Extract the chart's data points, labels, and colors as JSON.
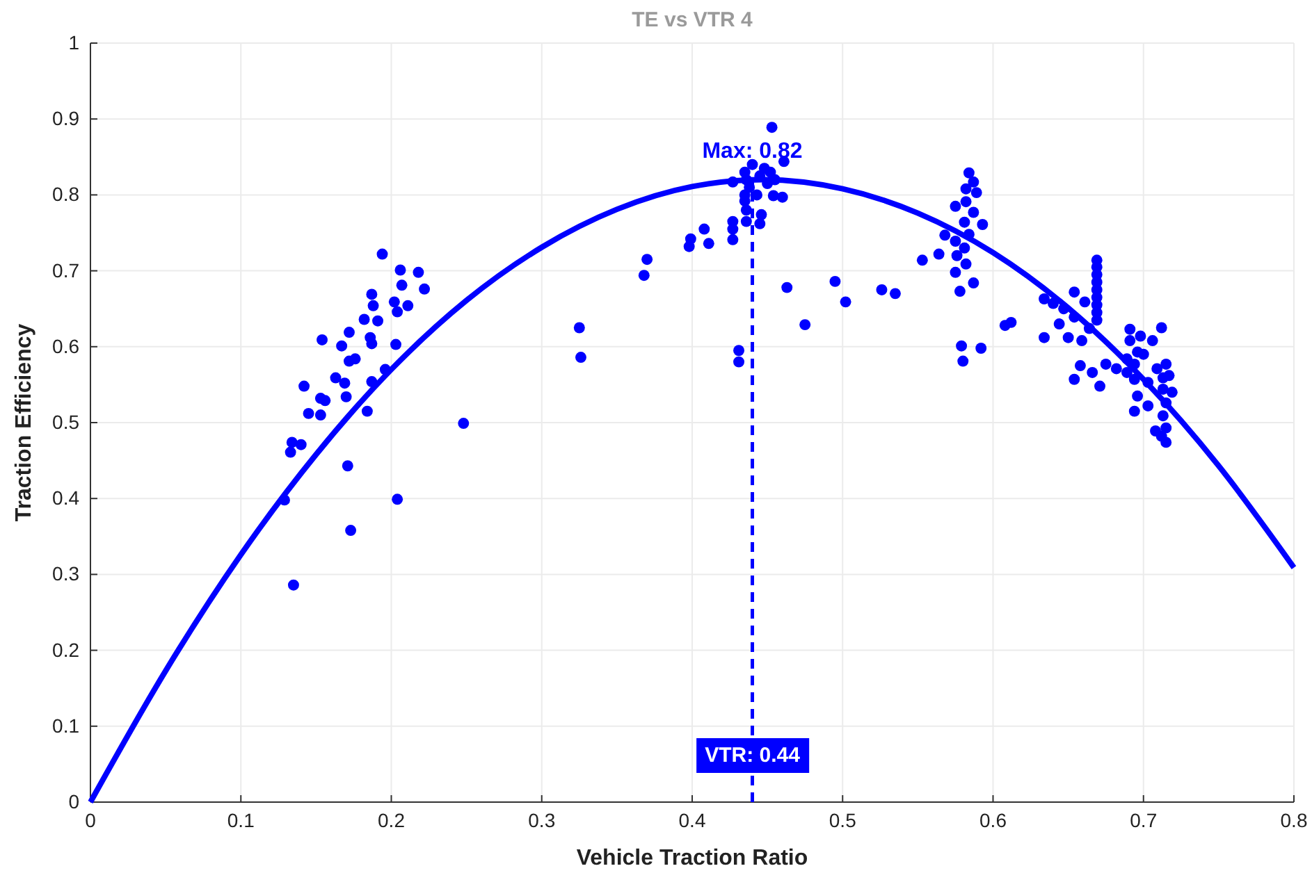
{
  "chart_data": {
    "type": "scatter",
    "title": "TE vs VTR 4",
    "xlabel": "Vehicle Traction Ratio",
    "ylabel": "Traction Efficiency",
    "xlim": [
      0,
      0.8
    ],
    "xticks": [
      0,
      0.1,
      0.2,
      0.3,
      0.4,
      0.5,
      0.6,
      0.7,
      0.8
    ],
    "ylim": [
      0,
      1
    ],
    "yticks": [
      0,
      0.1,
      0.2,
      0.3,
      0.4,
      0.5,
      0.6,
      0.7,
      0.8,
      0.9,
      1
    ],
    "grid": true,
    "annotations": [
      {
        "text": "Max: 0.82",
        "x": 0.44,
        "y": 0.82
      }
    ],
    "ref_lines": [
      {
        "axis": "x",
        "value": 0.44,
        "label": "VTR: 0.44",
        "color": "#0000ff",
        "line_style": "dashed"
      }
    ],
    "series": [
      {
        "marker": "circle",
        "color": "#0000ff",
        "x": [
          0.194,
          0.206,
          0.218,
          0.207,
          0.222,
          0.187,
          0.202,
          0.188,
          0.211,
          0.204,
          0.182,
          0.191,
          0.172,
          0.186,
          0.187,
          0.154,
          0.167,
          0.203,
          0.176,
          0.172,
          0.196,
          0.163,
          0.169,
          0.187,
          0.142,
          0.17,
          0.153,
          0.156,
          0.145,
          0.153,
          0.184,
          0.134,
          0.14,
          0.133,
          0.171,
          0.248,
          0.129,
          0.204,
          0.173,
          0.135,
          0.453,
          0.461,
          0.427,
          0.435,
          0.44,
          0.445,
          0.45,
          0.438,
          0.448,
          0.443,
          0.452,
          0.455,
          0.436,
          0.46,
          0.454,
          0.435,
          0.435,
          0.436,
          0.446,
          0.427,
          0.436,
          0.445,
          0.427,
          0.427,
          0.408,
          0.399,
          0.398,
          0.411,
          0.37,
          0.368,
          0.325,
          0.326,
          0.431,
          0.431,
          0.463,
          0.475,
          0.495,
          0.502,
          0.526,
          0.535,
          0.553,
          0.564,
          0.568,
          0.584,
          0.587,
          0.582,
          0.589,
          0.575,
          0.582,
          0.587,
          0.593,
          0.581,
          0.584,
          0.575,
          0.581,
          0.576,
          0.582,
          0.575,
          0.578,
          0.587,
          0.579,
          0.58,
          0.592,
          0.608,
          0.612,
          0.634,
          0.634,
          0.64,
          0.647,
          0.644,
          0.654,
          0.65,
          0.658,
          0.654,
          0.666,
          0.671,
          0.659,
          0.654,
          0.669,
          0.669,
          0.669,
          0.669,
          0.669,
          0.669,
          0.669,
          0.669,
          0.669,
          0.661,
          0.664,
          0.675,
          0.682,
          0.689,
          0.694,
          0.696,
          0.691,
          0.691,
          0.698,
          0.7,
          0.694,
          0.696,
          0.694,
          0.703,
          0.706,
          0.709,
          0.703,
          0.715,
          0.712,
          0.708,
          0.712,
          0.715,
          0.713,
          0.715,
          0.713,
          0.717,
          0.713,
          0.719,
          0.715,
          0.689
        ],
        "values": [
          0.722,
          0.701,
          0.698,
          0.681,
          0.676,
          0.669,
          0.659,
          0.654,
          0.654,
          0.646,
          0.636,
          0.634,
          0.619,
          0.612,
          0.604,
          0.609,
          0.601,
          0.603,
          0.584,
          0.581,
          0.57,
          0.559,
          0.552,
          0.554,
          0.548,
          0.534,
          0.532,
          0.529,
          0.512,
          0.51,
          0.515,
          0.474,
          0.471,
          0.461,
          0.443,
          0.499,
          0.398,
          0.399,
          0.358,
          0.286,
          0.889,
          0.844,
          0.817,
          0.83,
          0.84,
          0.825,
          0.815,
          0.81,
          0.835,
          0.8,
          0.83,
          0.82,
          0.82,
          0.797,
          0.799,
          0.8,
          0.792,
          0.78,
          0.774,
          0.765,
          0.765,
          0.762,
          0.755,
          0.741,
          0.755,
          0.742,
          0.732,
          0.736,
          0.715,
          0.694,
          0.625,
          0.586,
          0.595,
          0.58,
          0.678,
          0.629,
          0.686,
          0.659,
          0.675,
          0.67,
          0.714,
          0.722,
          0.747,
          0.829,
          0.817,
          0.808,
          0.803,
          0.785,
          0.791,
          0.777,
          0.761,
          0.764,
          0.748,
          0.739,
          0.73,
          0.72,
          0.709,
          0.698,
          0.673,
          0.684,
          0.601,
          0.581,
          0.598,
          0.628,
          0.632,
          0.612,
          0.663,
          0.657,
          0.65,
          0.63,
          0.639,
          0.612,
          0.575,
          0.557,
          0.566,
          0.548,
          0.608,
          0.672,
          0.714,
          0.705,
          0.695,
          0.685,
          0.675,
          0.665,
          0.655,
          0.645,
          0.635,
          0.659,
          0.624,
          0.577,
          0.571,
          0.584,
          0.577,
          0.593,
          0.608,
          0.623,
          0.614,
          0.59,
          0.557,
          0.535,
          0.515,
          0.522,
          0.608,
          0.571,
          0.553,
          0.577,
          0.625,
          0.489,
          0.482,
          0.474,
          0.509,
          0.526,
          0.544,
          0.562,
          0.559,
          0.54,
          0.493,
          0.566
        ]
      },
      {
        "type": "line",
        "color": "#0000ff",
        "x": [
          0,
          0.05,
          0.1,
          0.15,
          0.2,
          0.25,
          0.3,
          0.35,
          0.4,
          0.447,
          0.5,
          0.55,
          0.6,
          0.65,
          0.7,
          0.75,
          0.8
        ],
        "values": [
          0,
          0.173,
          0.326,
          0.458,
          0.57,
          0.661,
          0.731,
          0.781,
          0.811,
          0.82,
          0.808,
          0.776,
          0.724,
          0.651,
          0.557,
          0.443,
          0.309
        ]
      }
    ]
  }
}
